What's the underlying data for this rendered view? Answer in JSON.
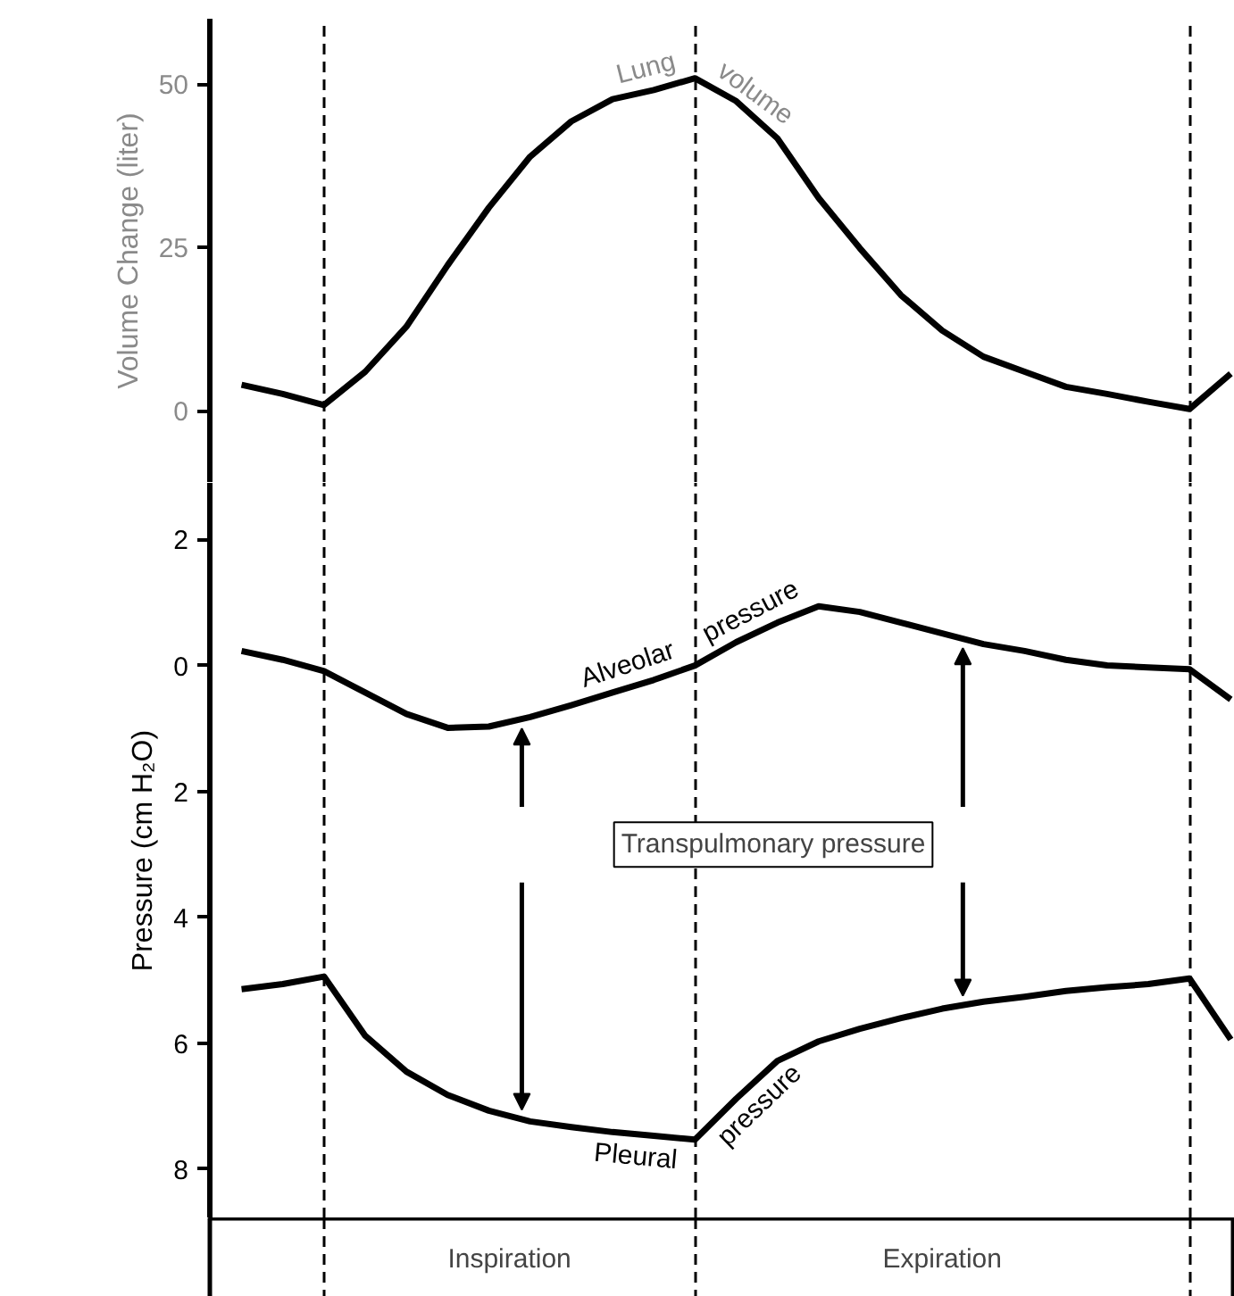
{
  "chart_data": [
    {
      "type": "line",
      "ylabel": "Volume Change (liter)",
      "ylim": [
        -11,
        60
      ],
      "yticks": [
        0,
        25,
        50
      ],
      "tick_labels": "y",
      "grid": "x",
      "categories": [
        null,
        null,
        null,
        null,
        null,
        null,
        null,
        null,
        null,
        null,
        null,
        null,
        null,
        null,
        null,
        null,
        null,
        null,
        null,
        null,
        null,
        null,
        null,
        null,
        null
      ],
      "series": [
        {
          "name": "Lung volume",
          "color": "#000000",
          "values": [
            4,
            2.6,
            0.9,
            6,
            12.9,
            22.3,
            31.1,
            38.9,
            44.3,
            47.7,
            49.1,
            50.9,
            47.4,
            41.7,
            32.6,
            24.9,
            17.7,
            12.3,
            8.3,
            6,
            3.7,
            2.6,
            1.4,
            0.3,
            5.7
          ]
        }
      ]
    },
    {
      "type": "line",
      "ylabel": "Pressure (cm H₂O)",
      "ylim": [
        -8.78,
        2.9
      ],
      "yticks": [
        2,
        0,
        {
          "value": -2,
          "label": "2"
        },
        {
          "value": -4,
          "label": "4"
        },
        {
          "value": -6,
          "label": "6"
        },
        {
          "value": -8,
          "label": "8"
        }
      ],
      "tick_labels": "y",
      "grid": "x",
      "categories": [
        null,
        null,
        null,
        null,
        null,
        null,
        null,
        null,
        null,
        null,
        null,
        null,
        null,
        null,
        null,
        null,
        null,
        null,
        null,
        null,
        null,
        null,
        null,
        null,
        null
      ],
      "series": [
        {
          "name": "Alveolar pressure",
          "color": "#000000",
          "values": [
            0.23,
            0.09,
            -0.09,
            -0.43,
            -0.77,
            -0.99,
            -0.97,
            -0.82,
            -0.63,
            -0.43,
            -0.23,
            0,
            0.37,
            0.68,
            0.94,
            0.85,
            0.68,
            0.51,
            0.34,
            0.23,
            0.09,
            0,
            -0.03,
            -0.06,
            -0.54
          ]
        },
        {
          "name": "Pleural pressure",
          "color": "#000000",
          "values": [
            -5.14,
            -5.06,
            -4.94,
            -5.88,
            -6.45,
            -6.82,
            -7.07,
            -7.24,
            -7.33,
            -7.41,
            -7.47,
            -7.53,
            -6.88,
            -6.28,
            -5.97,
            -5.77,
            -5.6,
            -5.45,
            -5.34,
            -5.26,
            -5.17,
            -5.11,
            -5.06,
            -4.97,
            -5.94
          ]
        }
      ],
      "annotations": [
        "Transpulmonary pressure",
        "Inspiration",
        "Expiration"
      ]
    }
  ]
}
